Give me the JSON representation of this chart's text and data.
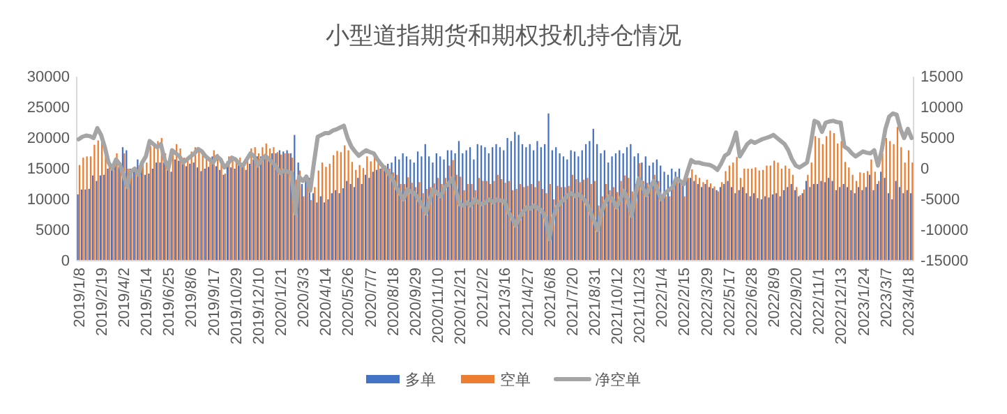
{
  "chart_data": {
    "type": "bar",
    "title": "小型道指期货和期权投机持仓情况",
    "categories": [
      "2019/1/8",
      null,
      null,
      null,
      null,
      null,
      "2019/2/19",
      null,
      null,
      null,
      null,
      null,
      "2019/4/2",
      null,
      null,
      null,
      null,
      null,
      "2019/5/14",
      null,
      null,
      null,
      null,
      null,
      "2019/6/25",
      null,
      null,
      null,
      null,
      null,
      "2019/8/6",
      null,
      null,
      null,
      null,
      null,
      "2019/9/17",
      null,
      null,
      null,
      null,
      null,
      "2019/10/29",
      null,
      null,
      null,
      null,
      null,
      "2019/12/10",
      null,
      null,
      null,
      null,
      null,
      "2020/1/21",
      null,
      null,
      null,
      null,
      null,
      "2020/3/3",
      null,
      null,
      null,
      null,
      null,
      "2020/4/14",
      null,
      null,
      null,
      null,
      null,
      "2020/5/26",
      null,
      null,
      null,
      null,
      null,
      "2020/7/7",
      null,
      null,
      null,
      null,
      null,
      "2020/8/18",
      null,
      null,
      null,
      null,
      null,
      "2020/9/29",
      null,
      null,
      null,
      null,
      null,
      "2020/11/10",
      null,
      null,
      null,
      null,
      null,
      "2020/12/21",
      null,
      null,
      null,
      null,
      null,
      "2021/2/2",
      null,
      null,
      null,
      null,
      null,
      "2021/3/16",
      null,
      null,
      null,
      null,
      null,
      "2021/4/27",
      null,
      null,
      null,
      null,
      null,
      "2021/6/8",
      null,
      null,
      null,
      null,
      null,
      "2021/7/20",
      null,
      null,
      null,
      null,
      null,
      "2021/8/31",
      null,
      null,
      null,
      null,
      null,
      "2021/10/12",
      null,
      null,
      null,
      null,
      null,
      "2021/11/23",
      null,
      null,
      null,
      null,
      null,
      "2022/1/4",
      null,
      null,
      null,
      null,
      null,
      "2022/2/15",
      null,
      null,
      null,
      null,
      null,
      "2022/3/29",
      null,
      null,
      null,
      null,
      null,
      "2022/5/17",
      null,
      null,
      null,
      null,
      null,
      "2022/6/28",
      null,
      null,
      null,
      null,
      null,
      "2022/8/9",
      null,
      null,
      null,
      null,
      null,
      "2022/9/20",
      null,
      null,
      null,
      null,
      null,
      "2022/11/1",
      null,
      null,
      null,
      null,
      null,
      "2022/12/13",
      null,
      null,
      null,
      null,
      null,
      "2023/1/24",
      null,
      null,
      null,
      null,
      null,
      "2023/3/7",
      null,
      null,
      null,
      null,
      null,
      "2023/4/18",
      null
    ],
    "series": [
      {
        "name": "多单",
        "color": "#4472c4",
        "values": [
          10800,
          11600,
          11600,
          11700,
          13900,
          13000,
          13900,
          14000,
          15000,
          15500,
          16000,
          15300,
          18500,
          18000,
          15000,
          14800,
          16500,
          15000,
          14000,
          14200,
          15000,
          16000,
          16000,
          16000,
          15500,
          14500,
          16500,
          16300,
          15800,
          15400,
          15800,
          16000,
          15200,
          14600,
          15000,
          15300,
          17000,
          15400,
          14800,
          14000,
          16200,
          15200,
          15000,
          16000,
          15600,
          14800,
          15800,
          16500,
          17000,
          17000,
          17000,
          16800,
          17500,
          17500,
          18000,
          17800,
          18000,
          17500,
          20500,
          16000,
          12500,
          14000,
          13500,
          11000,
          9500,
          10500,
          9500,
          10000,
          11000,
          11500,
          11000,
          11800,
          13000,
          12500,
          12000,
          13500,
          12500,
          14000,
          13500,
          14500,
          14800,
          15000,
          15500,
          15800,
          16000,
          17000,
          16500,
          17500,
          17000,
          16500,
          16000,
          17800,
          17000,
          19000,
          17000,
          16000,
          17500,
          17000,
          16500,
          18000,
          18000,
          17500,
          19500,
          17500,
          18000,
          18500,
          16500,
          19000,
          18800,
          18500,
          17500,
          18500,
          19000,
          18500,
          18000,
          20000,
          19500,
          21000,
          20500,
          19000,
          18500,
          19000,
          18000,
          19500,
          18500,
          19000,
          24000,
          18000,
          18500,
          17500,
          17000,
          16500,
          18000,
          17800,
          17000,
          18000,
          19000,
          19500,
          21500,
          19000,
          17500,
          18000,
          16000,
          17000,
          17500,
          18000,
          17500,
          18500,
          19000,
          17000,
          17500,
          16000,
          17000,
          15500,
          16000,
          16500,
          15500,
          14500,
          14000,
          15000,
          14500,
          15000,
          13000,
          14000,
          13500,
          13000,
          12500,
          12000,
          12500,
          12000,
          11800,
          11500,
          12000,
          12500,
          13000,
          12000,
          11000,
          11500,
          12000,
          11000,
          10500,
          11000,
          10200,
          10000,
          10500,
          10300,
          10800,
          11000,
          10500,
          11500,
          12000,
          12500,
          11500,
          10500,
          11000,
          13000,
          12000,
          12500,
          12500,
          13000,
          12800,
          13500,
          13000,
          11500,
          12000,
          12500,
          12000,
          11500,
          11000,
          12000,
          11500,
          12000,
          14000,
          11500,
          12500,
          14500,
          13500,
          11000,
          10000,
          13000,
          12000,
          11000,
          11500,
          11000
        ]
      },
      {
        "name": "空单",
        "color": "#ed7d31",
        "values": [
          15600,
          16800,
          17000,
          17000,
          18900,
          19600,
          19400,
          17500,
          16000,
          15500,
          17500,
          16000,
          17500,
          15000,
          14500,
          14800,
          15500,
          16000,
          16000,
          18700,
          19000,
          19500,
          20000,
          17500,
          15500,
          17500,
          19000,
          18300,
          16800,
          16900,
          17800,
          18500,
          18400,
          17400,
          17000,
          16800,
          18000,
          17400,
          16300,
          14200,
          17000,
          17000,
          16500,
          16800,
          16100,
          16300,
          18300,
          18500,
          17500,
          18500,
          19100,
          18300,
          18500,
          17700,
          17300,
          17500,
          17500,
          16800,
          13200,
          14700,
          10500,
          12700,
          9900,
          12000,
          14700,
          16000,
          15300,
          15800,
          17200,
          17900,
          17700,
          18800,
          18000,
          16100,
          14800,
          15600,
          15100,
          17000,
          16200,
          17000,
          16300,
          15700,
          15500,
          15000,
          14400,
          14000,
          12500,
          12500,
          13600,
          12700,
          12000,
          12800,
          11000,
          11700,
          12000,
          12600,
          13500,
          12500,
          13500,
          15500,
          16400,
          14000,
          13700,
          11500,
          12500,
          12500,
          11500,
          13500,
          13000,
          13000,
          12500,
          13000,
          14000,
          13300,
          12700,
          13000,
          11500,
          11700,
          12500,
          12000,
          12200,
          12500,
          12000,
          13000,
          11700,
          11000,
          12500,
          10000,
          12200,
          12000,
          12000,
          12200,
          14000,
          13300,
          12800,
          13200,
          13500,
          12500,
          13000,
          9000,
          10500,
          12500,
          11500,
          12000,
          11200,
          13000,
          13900,
          13500,
          11300,
          12500,
          15900,
          13000,
          12700,
          12500,
          14000,
          13000,
          10500,
          10500,
          10500,
          12000,
          12900,
          13000,
          10500,
          13500,
          14900,
          14000,
          13500,
          12800,
          13200,
          12600,
          12100,
          11300,
          12800,
          14600,
          15500,
          16000,
          16900,
          13500,
          15000,
          15000,
          15000,
          15200,
          14700,
          14800,
          15500,
          15500,
          16300,
          16000,
          15000,
          15500,
          15000,
          14000,
          12000,
          10700,
          11600,
          14000,
          16000,
          20300,
          20000,
          19000,
          20300,
          21200,
          20800,
          19100,
          19500,
          16100,
          15200,
          14000,
          13000,
          14400,
          14300,
          14600,
          16500,
          14500,
          13000,
          17500,
          20000,
          19500,
          19000,
          21800,
          18500,
          16000,
          18000,
          16000
        ]
      },
      {
        "name": "净空单",
        "type": "line",
        "axis": "y2",
        "color": "#a5a5a5",
        "values": [
          4800,
          5200,
          5400,
          5300,
          5000,
          6600,
          5500,
          3500,
          1000,
          0,
          1500,
          700,
          -1000,
          -3000,
          -500,
          0,
          -1000,
          1000,
          2000,
          4500,
          4000,
          3500,
          4000,
          1500,
          0,
          3000,
          2500,
          2000,
          1000,
          1500,
          2000,
          2500,
          3200,
          2800,
          2000,
          1500,
          1000,
          2000,
          1500,
          200,
          800,
          1800,
          1500,
          800,
          500,
          1500,
          2500,
          2000,
          500,
          1500,
          2100,
          1500,
          1000,
          200,
          -700,
          -300,
          -500,
          -700,
          -7300,
          -1300,
          -2000,
          -1300,
          -3600,
          1000,
          5200,
          5500,
          5800,
          5800,
          6200,
          6400,
          6700,
          7000,
          5000,
          3600,
          2800,
          2100,
          2600,
          3000,
          2700,
          2500,
          1500,
          700,
          0,
          -800,
          -1600,
          -3000,
          -4000,
          -5000,
          -3400,
          -3800,
          -4000,
          -5000,
          -6000,
          -7300,
          -5000,
          -3400,
          -4000,
          -4500,
          -3000,
          -2500,
          -1600,
          -3500,
          -5800,
          -6000,
          -5500,
          -6000,
          -5000,
          -5500,
          -5800,
          -5500,
          -5000,
          -5500,
          -5000,
          -5200,
          -5300,
          -7000,
          -8000,
          -9300,
          -8000,
          -7000,
          -6300,
          -6500,
          -6000,
          -6500,
          -6800,
          -8000,
          -11500,
          -8000,
          -6300,
          -5500,
          -5000,
          -4300,
          -4000,
          -4500,
          -4200,
          -4800,
          -5500,
          -7000,
          -8500,
          -10000,
          -7000,
          -5500,
          -4500,
          -5000,
          -6300,
          -5000,
          -3600,
          -5000,
          -7700,
          -4500,
          -1600,
          -3000,
          -4300,
          -3000,
          -2000,
          -3500,
          -5000,
          -4000,
          -3500,
          -3000,
          -1600,
          -2000,
          -2500,
          -500,
          1400,
          1000,
          1000,
          800,
          700,
          600,
          300,
          -200,
          800,
          2100,
          2500,
          4000,
          5900,
          2000,
          3000,
          4000,
          4500,
          4200,
          4500,
          4800,
          5000,
          5200,
          5500,
          5000,
          4500,
          4000,
          3000,
          1500,
          500,
          200,
          600,
          1000,
          4000,
          7800,
          7500,
          6000,
          7500,
          7700,
          7800,
          7600,
          7500,
          3600,
          3200,
          2500,
          2000,
          2400,
          2800,
          2600,
          2500,
          3000,
          500,
          3000,
          6500,
          8500,
          9000,
          8800,
          6500,
          5000,
          6500,
          5000
        ]
      }
    ],
    "ylim": [
      0,
      30000
    ],
    "yticks": [
      0,
      5000,
      10000,
      15000,
      20000,
      25000,
      30000
    ],
    "y2lim": [
      -15000,
      15000
    ],
    "y2ticks": [
      -15000,
      -10000,
      -5000,
      0,
      5000,
      10000,
      15000
    ],
    "legend": "bottom"
  }
}
